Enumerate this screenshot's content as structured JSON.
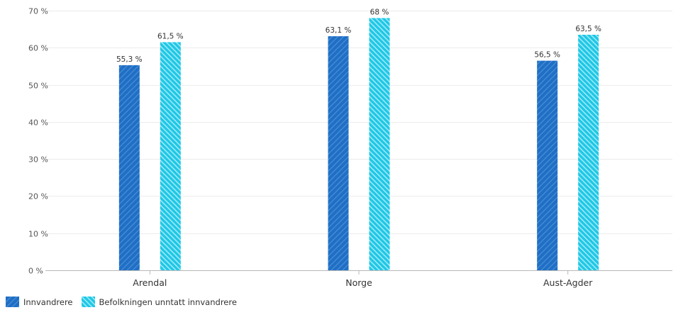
{
  "chart_data": {
    "type": "bar",
    "categories": [
      "Arendal",
      "Norge",
      "Aust-Agder"
    ],
    "series": [
      {
        "name": "Innvandrere",
        "values": [
          55.3,
          63.1,
          56.5
        ],
        "labels": [
          "55,3 %",
          "63,1 %",
          "56,5 %"
        ],
        "color": "#1f6fc5",
        "pattern": "diagonal-hatch-forward"
      },
      {
        "name": "Befolkningen unntatt innvandrere",
        "values": [
          61.5,
          68,
          63.5
        ],
        "labels": [
          "61,5 %",
          "68 %",
          "63,5 %"
        ],
        "color": "#1ec8e6",
        "pattern": "diagonal-hatch-backward"
      }
    ],
    "ylim": [
      0,
      70
    ],
    "yticks": [
      0,
      10,
      20,
      30,
      40,
      50,
      60,
      70
    ],
    "ytick_labels": [
      "0 %",
      "10 %",
      "20 %",
      "30 %",
      "40 %",
      "50 %",
      "60 %",
      "70 %"
    ],
    "grid": true,
    "legend_position": "bottom-left",
    "title": "",
    "xlabel": "",
    "ylabel": ""
  }
}
